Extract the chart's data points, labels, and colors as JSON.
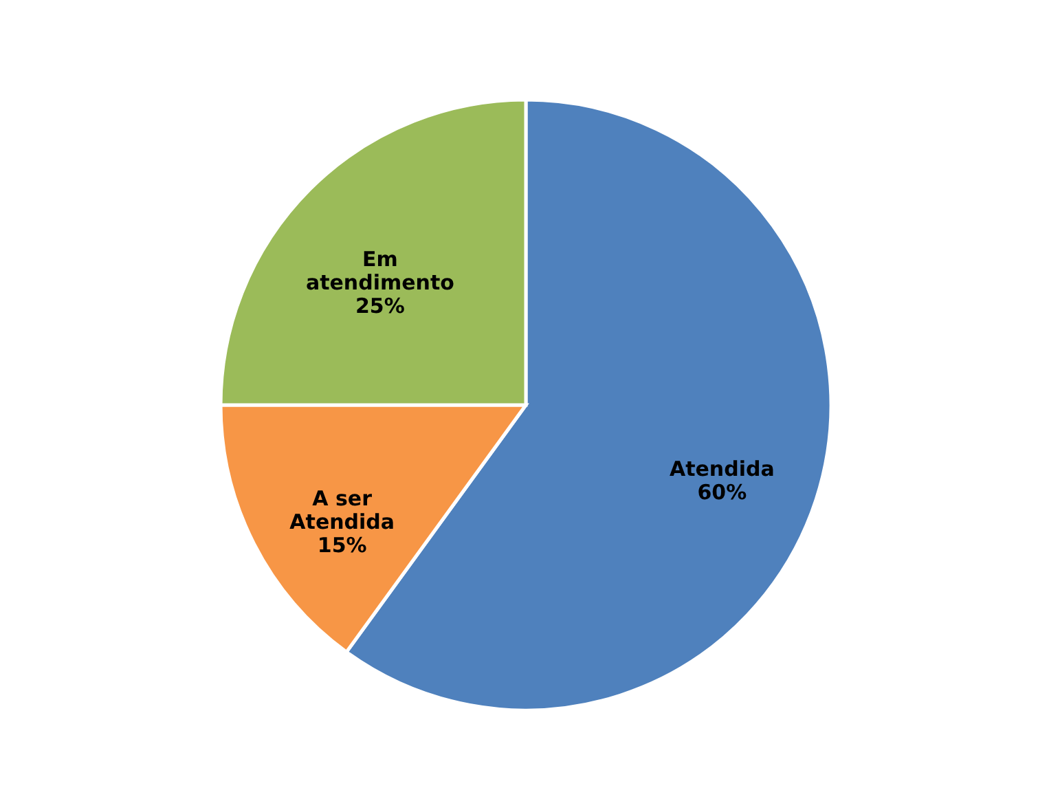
{
  "chart_data": {
    "type": "pie",
    "categories": [
      "Atendida",
      "A ser Atendida",
      "Em atendimento"
    ],
    "values": [
      60,
      15,
      25
    ],
    "value_labels": [
      "60%",
      "15%",
      "25%"
    ],
    "colors": [
      "#4f81bd",
      "#f79646",
      "#9bbb59"
    ]
  }
}
